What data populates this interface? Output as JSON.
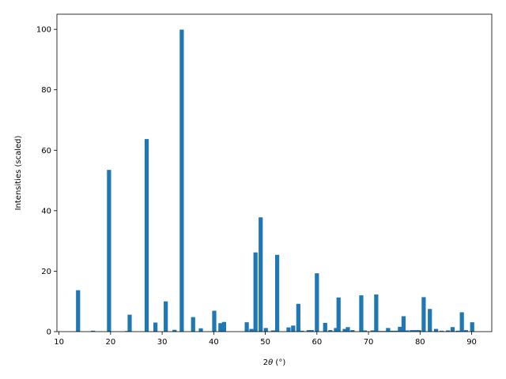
{
  "chart_data": {
    "type": "bar",
    "xlabel_prefix": "2",
    "xlabel_theta": "θ",
    "xlabel_unit": " (°)",
    "ylabel": "Intensities (scaled)",
    "xlim": [
      9.6,
      93.9
    ],
    "ylim": [
      0,
      105
    ],
    "xticks": [
      10,
      20,
      30,
      40,
      50,
      60,
      70,
      80,
      90
    ],
    "yticks": [
      0,
      20,
      40,
      60,
      80,
      100
    ],
    "bar_color": "#1f77b4",
    "bar_width": 0.8,
    "x": [
      13.7,
      16.6,
      19.7,
      23.2,
      23.7,
      27.0,
      28.7,
      30.7,
      32.4,
      33.8,
      36.0,
      37.5,
      40.1,
      41.3,
      42.0,
      46.4,
      47.3,
      48.1,
      49.1,
      50.1,
      51.5,
      52.3,
      54.5,
      55.4,
      56.4,
      57.1,
      58.4,
      59.0,
      60.0,
      61.6,
      62.6,
      63.7,
      64.2,
      65.4,
      66.0,
      66.9,
      68.6,
      69.3,
      70.8,
      71.5,
      72.3,
      73.1,
      73.8,
      74.6,
      75.4,
      76.1,
      76.8,
      77.5,
      78.4,
      79.2,
      79.8,
      80.7,
      81.9,
      83.1,
      84.2,
      85.4,
      86.3,
      87.3,
      88.1,
      88.9,
      90.1
    ],
    "values": [
      13.7,
      0.3,
      53.5,
      0.2,
      5.6,
      63.7,
      3.0,
      10.0,
      0.6,
      99.9,
      4.8,
      1.1,
      6.9,
      2.8,
      3.2,
      3.1,
      0.9,
      26.2,
      37.8,
      1.2,
      0.4,
      25.4,
      1.4,
      2.0,
      9.2,
      0.3,
      0.5,
      0.5,
      19.3,
      2.9,
      0.5,
      1.2,
      11.3,
      0.9,
      1.5,
      0.5,
      12.0,
      0.4,
      0.4,
      12.3,
      0.2,
      0.2,
      1.2,
      0.3,
      0.3,
      1.6,
      5.1,
      0.4,
      0.5,
      0.5,
      0.5,
      11.4,
      7.5,
      0.9,
      0.3,
      0.4,
      1.5,
      0.3,
      6.4,
      0.5,
      3.1
    ]
  }
}
